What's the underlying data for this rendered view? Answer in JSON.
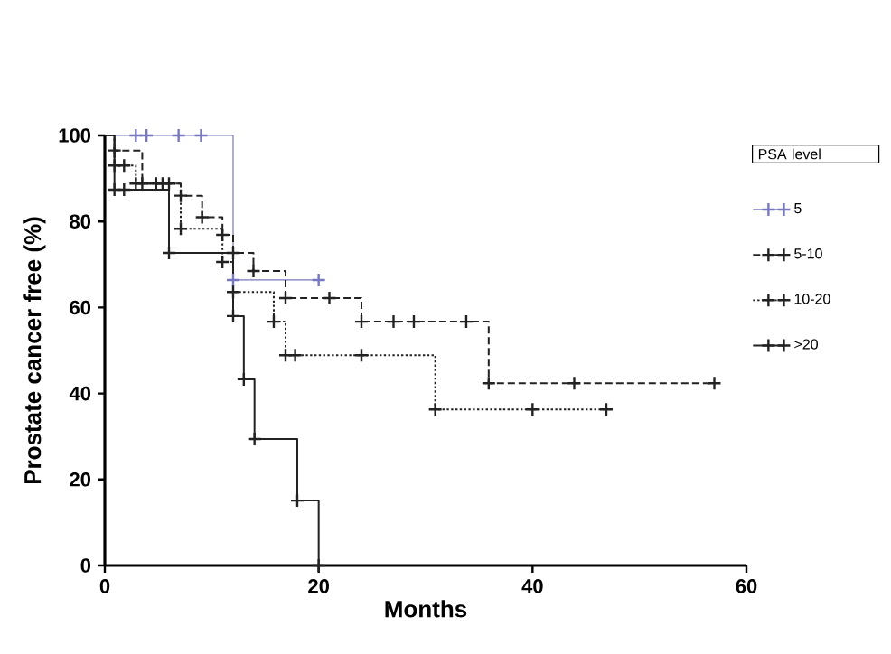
{
  "chart_data": {
    "type": "step",
    "xlabel": "Months",
    "ylabel": "Prostate cancer free (%)",
    "legend_title": "PSA level",
    "legend": "right",
    "marker": "cross",
    "xlim": [
      0,
      60
    ],
    "ylim": [
      0,
      100
    ],
    "xticks": [
      0,
      20,
      40,
      60
    ],
    "yticks": [
      0,
      20,
      40,
      60,
      80,
      100
    ],
    "series": [
      {
        "name": "5",
        "color": "#7878c0",
        "line_style": "solid",
        "x": [
          0,
          2.9,
          3.9,
          6.9,
          9,
          12,
          20
        ],
        "values": [
          100,
          100,
          100,
          100,
          100,
          66.4,
          66.4
        ]
      },
      {
        "name": "5-10",
        "color": "#222222",
        "line_style": "dashed",
        "x": [
          0,
          0.9,
          3.5,
          4.8,
          5.4,
          6,
          7.1,
          9.1,
          11,
          12,
          13.9,
          16.9,
          21,
          24,
          27,
          28.9,
          33.8,
          35.9,
          43.9,
          57
        ],
        "values": [
          100,
          96.5,
          88.8,
          88.8,
          88.8,
          88.8,
          86,
          81,
          76.9,
          72.7,
          68.5,
          62.2,
          62.2,
          56.7,
          56.7,
          56.7,
          56.7,
          42.4,
          42.4,
          42.4
        ]
      },
      {
        "name": "10-20",
        "color": "#222222",
        "line_style": "dotted",
        "x": [
          0,
          0.9,
          1.8,
          2.9,
          7.1,
          11,
          12,
          15.8,
          16.9,
          17.8,
          24,
          30.9,
          40,
          46.9
        ],
        "values": [
          100,
          93,
          93,
          88.8,
          78.3,
          70.6,
          63.6,
          56.7,
          48.9,
          48.9,
          48.9,
          36.3,
          36.3,
          36.3
        ]
      },
      {
        "name": ">20",
        "color": "#222222",
        "line_style": "solid",
        "x": [
          0,
          0.9,
          1.8,
          6,
          12,
          13,
          14,
          18,
          20
        ],
        "values": [
          100,
          87.4,
          87.4,
          72.7,
          58,
          43.3,
          29.4,
          15.1,
          0
        ]
      }
    ]
  }
}
